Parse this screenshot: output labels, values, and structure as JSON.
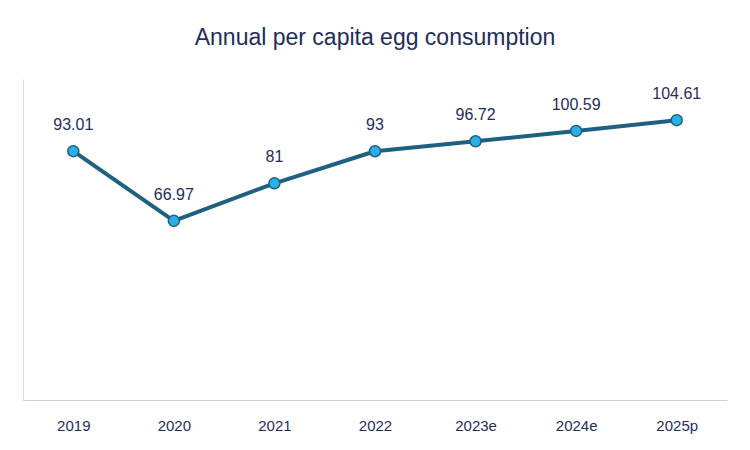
{
  "chart_data": {
    "type": "line",
    "title": "Annual per capita egg consumption",
    "categories": [
      "2019",
      "2020",
      "2021",
      "2022",
      "2023e",
      "2024e",
      "2025p"
    ],
    "values": [
      93.01,
      66.97,
      81,
      93,
      96.72,
      100.59,
      104.61
    ],
    "color": "#1f5f7f",
    "marker": "circle",
    "ylim": [
      0,
      120
    ],
    "data_labels": true,
    "tick_labels": "x",
    "grid": false
  }
}
